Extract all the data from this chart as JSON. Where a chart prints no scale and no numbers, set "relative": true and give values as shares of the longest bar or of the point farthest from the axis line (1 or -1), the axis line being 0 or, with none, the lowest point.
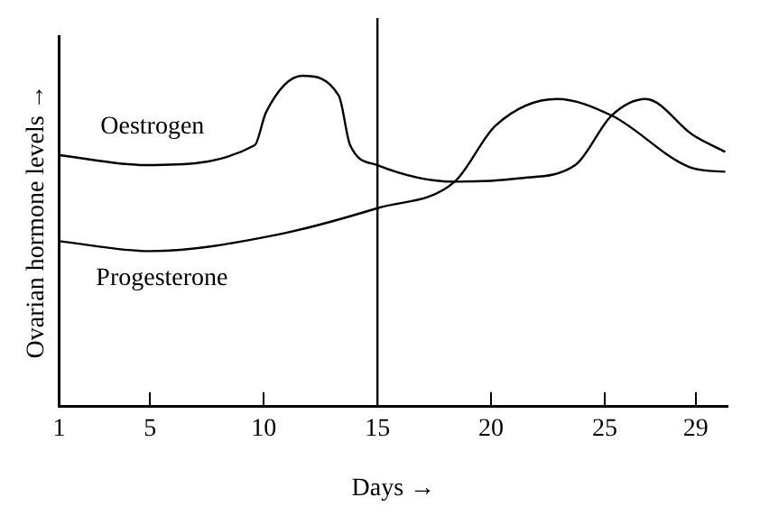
{
  "chart_data": {
    "type": "line",
    "xlabel": "Days →",
    "ylabel": "Ovarian hormone levels →",
    "relative": true,
    "xlim": [
      1,
      30.4
    ],
    "xticks": [
      1,
      5,
      10,
      15,
      20,
      25,
      29
    ],
    "tick_labels": "x",
    "grid": false,
    "legend": false,
    "series": [
      {
        "name": "Oestrogen",
        "color": "#000000",
        "x": [
          1,
          4.8,
          9.6,
          10.1,
          11.7,
          13.3,
          13.8,
          15,
          18.4,
          21.2,
          23.7,
          25.3,
          26.8,
          28.9,
          30.3
        ],
        "values": [
          0.76,
          0.73,
          0.79,
          0.89,
          1,
          0.94,
          0.79,
          0.73,
          0.68,
          0.69,
          0.73,
          0.88,
          0.93,
          0.82,
          0.77
        ]
      },
      {
        "name": "Progesterone",
        "color": "#000000",
        "x": [
          1,
          5,
          10.6,
          15,
          18.4,
          20.2,
          22.9,
          25.3,
          28.9,
          30.3
        ],
        "values": [
          0.5,
          0.47,
          0.52,
          0.6,
          0.68,
          0.85,
          0.93,
          0.88,
          0.72,
          0.71
        ]
      }
    ],
    "ref_lines": [
      {
        "axis": "x",
        "value": 15,
        "color": "#000000"
      }
    ]
  }
}
